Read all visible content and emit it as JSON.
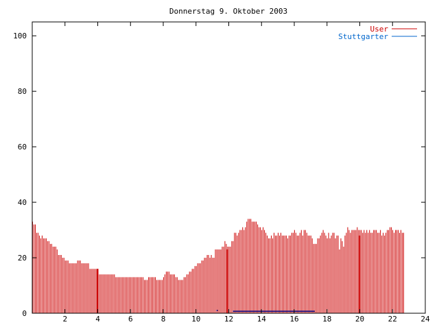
{
  "chart_data": {
    "type": "bar",
    "title": "Donnerstag 9. Oktober 2003",
    "xlabel": "",
    "ylabel": "",
    "xlim": [
      0,
      24
    ],
    "ylim": [
      0,
      105
    ],
    "xticks": [
      2,
      4,
      6,
      8,
      10,
      12,
      14,
      16,
      18,
      20,
      22,
      24
    ],
    "yticks": [
      0,
      20,
      40,
      60,
      80,
      100
    ],
    "grid": false,
    "legend_position": "top-right",
    "sample_interval_hours": 0.0833,
    "series": [
      {
        "name": "User",
        "color": "#cc0000",
        "values": [
          33,
          32,
          32,
          29,
          29,
          28,
          27,
          28,
          27,
          27,
          27,
          26,
          26,
          25,
          25,
          24,
          24,
          24,
          23,
          21,
          21,
          21,
          20,
          20,
          19,
          19,
          19,
          18,
          18,
          18,
          18,
          18,
          18,
          19,
          19,
          19,
          18,
          18,
          18,
          18,
          18,
          18,
          16,
          16,
          16,
          16,
          16,
          16,
          14,
          14,
          14,
          14,
          14,
          14,
          14,
          14,
          14,
          14,
          14,
          14,
          14,
          13,
          13,
          13,
          13,
          13,
          13,
          13,
          13,
          13,
          13,
          13,
          13,
          13,
          13,
          13,
          13,
          13,
          13,
          13,
          13,
          13,
          12,
          12,
          12,
          13,
          13,
          13,
          13,
          13,
          13,
          12,
          12,
          12,
          12,
          12,
          13,
          14,
          15,
          15,
          15,
          14,
          14,
          14,
          14,
          13,
          13,
          12,
          12,
          12,
          12,
          13,
          13,
          14,
          14,
          15,
          15,
          16,
          16,
          17,
          17,
          18,
          18,
          18,
          19,
          19,
          20,
          20,
          21,
          21,
          20,
          21,
          20,
          20,
          23,
          23,
          23,
          23,
          23,
          24,
          24,
          26,
          25,
          24,
          24,
          24,
          26,
          26,
          29,
          29,
          28,
          29,
          30,
          30,
          31,
          30,
          31,
          33,
          34,
          34,
          34,
          33,
          33,
          33,
          33,
          32,
          31,
          31,
          30,
          31,
          30,
          29,
          28,
          27,
          27,
          28,
          27,
          29,
          28,
          28,
          29,
          28,
          29,
          28,
          28,
          28,
          28,
          27,
          28,
          28,
          29,
          29,
          30,
          29,
          28,
          28,
          29,
          30,
          28,
          30,
          30,
          29,
          28,
          28,
          28,
          27,
          25,
          25,
          25,
          27,
          27,
          28,
          29,
          30,
          29,
          28,
          27,
          29,
          27,
          28,
          29,
          29,
          27,
          28,
          28,
          23,
          27,
          26,
          24,
          28,
          29,
          31,
          30,
          29,
          30,
          30,
          30,
          30,
          31,
          30,
          30,
          30,
          29,
          30,
          29,
          30,
          29,
          30,
          29,
          29,
          30,
          30,
          30,
          29,
          29,
          30,
          28,
          29,
          28,
          29,
          30,
          30,
          31,
          31,
          30,
          29,
          30,
          30,
          30,
          29,
          30,
          29,
          29
        ],
        "spikes": [
          {
            "x": 4.0,
            "value": 16
          },
          {
            "x": 11.92,
            "value": 23
          },
          {
            "x": 20.0,
            "value": 28
          }
        ]
      },
      {
        "name": "Stuttgarter",
        "color": "#0066cc",
        "segments": [
          {
            "x_start": 11.25,
            "x_end": 11.33,
            "value": 1
          },
          {
            "x_start": 12.25,
            "x_end": 17.25,
            "value": 0.7
          }
        ]
      }
    ]
  }
}
